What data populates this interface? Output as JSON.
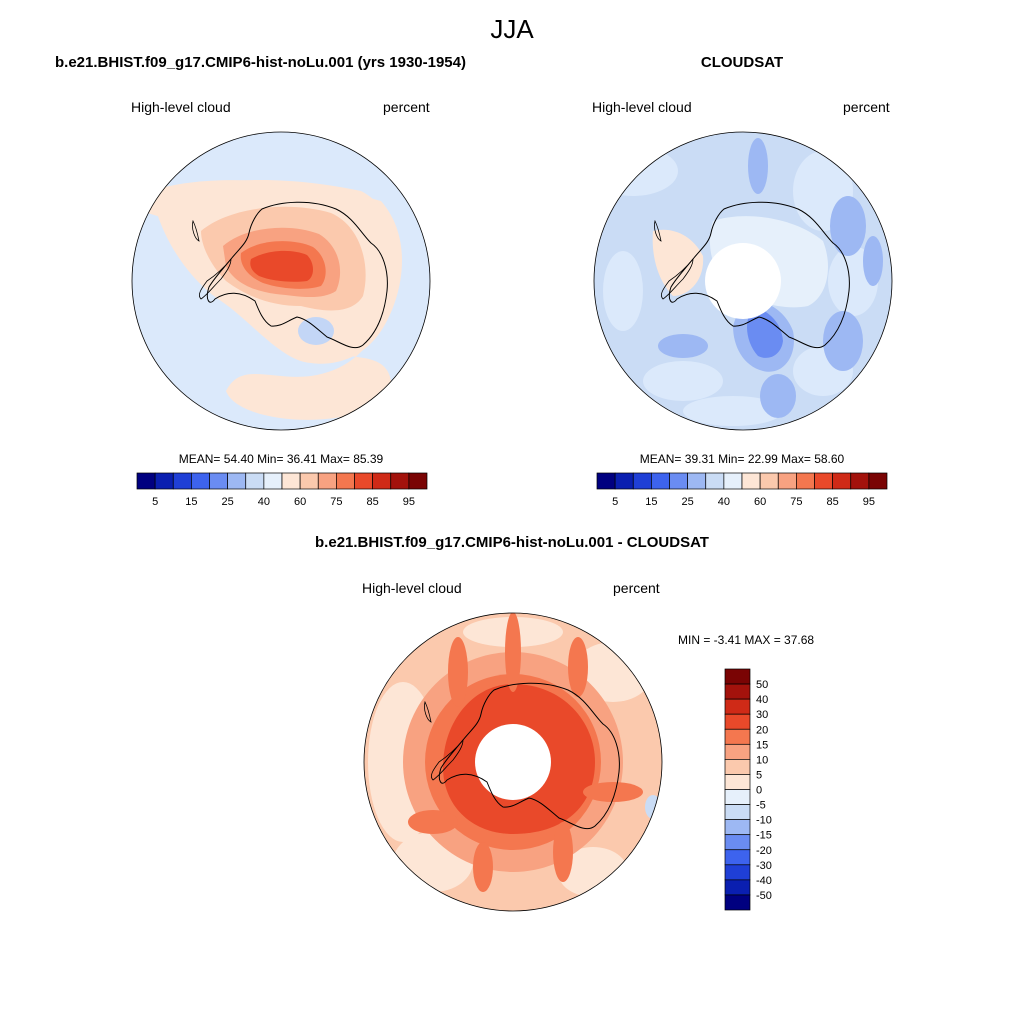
{
  "figure": {
    "title": "JJA"
  },
  "panels": [
    {
      "title": "b.e21.BHIST.f09_g17.CMIP6-hist-noLu.001 (yrs 1930-1954)",
      "left_label": "High-level cloud",
      "right_label": "percent",
      "stats": "MEAN=  54.40  Min=  36.41  Max=  85.39",
      "colorbar_labels": [
        "5",
        "15",
        "25",
        "40",
        "60",
        "75",
        "85",
        "95"
      ],
      "has_pole_gap": false
    },
    {
      "title": "CLOUDSAT",
      "left_label": "High-level cloud",
      "right_label": "percent",
      "stats": "MEAN=  39.31  Min=  22.99  Max=  58.60",
      "colorbar_labels": [
        "5",
        "15",
        "25",
        "40",
        "60",
        "75",
        "85",
        "95"
      ],
      "has_pole_gap": true
    },
    {
      "title": "b.e21.BHIST.f09_g17.CMIP6-hist-noLu.001 - CLOUDSAT",
      "left_label": "High-level cloud",
      "right_label": "percent",
      "stats": "MIN =  -3.41 MAX =  37.68",
      "colorbar_labels": [
        "50",
        "40",
        "30",
        "20",
        "15",
        "10",
        "5",
        "0",
        "-5",
        "-10",
        "-15",
        "-20",
        "-30",
        "-40",
        "-50"
      ],
      "has_pole_gap": true
    }
  ],
  "colors": {
    "abs_scale": [
      "#000080",
      "#0a1fb0",
      "#1f3fd6",
      "#3d63ee",
      "#6a8cf2",
      "#9db8f3",
      "#cadcf5",
      "#e6f0fb",
      "#fde6d6",
      "#fbc9ad",
      "#f8a281",
      "#f4774f",
      "#e9492a",
      "#cf2a17",
      "#a3120c",
      "#7a0404"
    ],
    "diff_scale": [
      "#7a0404",
      "#a3120c",
      "#cf2a17",
      "#e9492a",
      "#f4774f",
      "#f8a281",
      "#fbc9ad",
      "#fde6d6",
      "#e6f0fb",
      "#cadcf5",
      "#9db8f3",
      "#6a8cf2",
      "#3d63ee",
      "#1f3fd6",
      "#0a1fb0",
      "#000080"
    ]
  }
}
